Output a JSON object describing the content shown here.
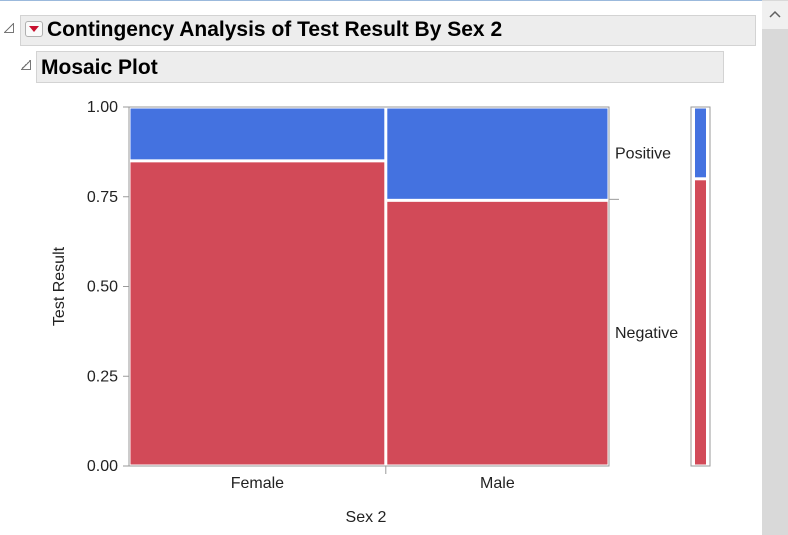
{
  "report": {
    "title": "Contingency Analysis of Test Result By Sex 2",
    "section": "Mosaic Plot"
  },
  "icons": {
    "outline_toggle": "disclosure-triangle-icon",
    "red_menu": "red-triangle-menu-icon",
    "scroll_up": "chevron-up-icon"
  },
  "chart_data": {
    "type": "mosaic",
    "xlabel": "Sex 2",
    "ylabel": "Test Result",
    "ylim": [
      0,
      1
    ],
    "yticks": [
      "0.00",
      "0.25",
      "0.50",
      "0.75",
      "1.00"
    ],
    "categories": [
      "Female",
      "Male"
    ],
    "category_widths": [
      0.535,
      0.465
    ],
    "series": [
      {
        "name": "Negative",
        "color": "#d24a58",
        "values": [
          0.85,
          0.74
        ]
      },
      {
        "name": "Positive",
        "color": "#4472e0",
        "values": [
          0.15,
          0.26
        ]
      }
    ],
    "marginal": {
      "Negative": 0.8,
      "Positive": 0.2
    }
  }
}
